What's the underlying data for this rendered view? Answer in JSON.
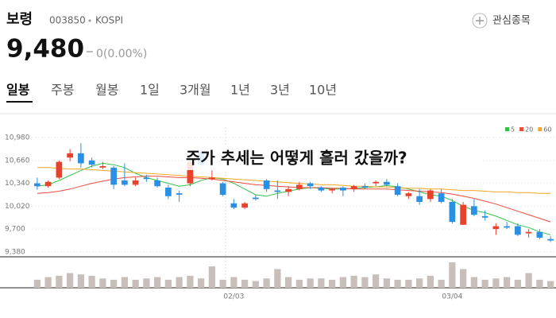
{
  "header": {
    "name": "보령",
    "code": "003850",
    "market": "KOSPI",
    "watch": "관심종목",
    "price": "9,480",
    "change": "0(0.00%)"
  },
  "tabs": [
    "일봉",
    "주봉",
    "월봉",
    "1일",
    "3개월",
    "1년",
    "3년",
    "10년"
  ],
  "chart_data": {
    "type": "candlestick",
    "title": "주가 추세는 어떻게 흘러 갔을까?",
    "categories": [
      null,
      null,
      null,
      null,
      null,
      null,
      null,
      null,
      null,
      null,
      null,
      null,
      null,
      null,
      null,
      null,
      null,
      null,
      "02/03",
      null,
      null,
      null,
      null,
      null,
      null,
      null,
      null,
      null,
      null,
      null,
      null,
      null,
      null,
      null,
      null,
      null,
      null,
      null,
      "03/04",
      null,
      null,
      null,
      null,
      null,
      null,
      null,
      null,
      null
    ],
    "open": [
      10340,
      10300,
      10420,
      10700,
      10760,
      10660,
      10560,
      10560,
      10380,
      10320,
      10420,
      10380,
      10280,
      10200,
      10340,
      10780,
      10400,
      10340,
      10060,
      10000,
      10140,
      10380,
      10240,
      10220,
      10260,
      10340,
      10280,
      10240,
      10280,
      10260,
      10300,
      10340,
      10360,
      10300,
      10160,
      10160,
      10120,
      10200,
      10080,
      9760,
      10020,
      9880,
      9700,
      9740,
      9740,
      9640,
      9660,
      9560
    ],
    "high": [
      10420,
      10380,
      10660,
      10820,
      10900,
      10700,
      10640,
      10580,
      10620,
      10420,
      10460,
      10420,
      10320,
      10240,
      10700,
      10820,
      10520,
      10360,
      10120,
      10080,
      10180,
      10400,
      10380,
      10300,
      10360,
      10360,
      10300,
      10280,
      10300,
      10320,
      10340,
      10380,
      10400,
      10340,
      10220,
      10260,
      10260,
      10260,
      10120,
      10080,
      10120,
      9960,
      9780,
      9800,
      9780,
      9700,
      9700,
      9600
    ],
    "low": [
      10250,
      10280,
      10400,
      10650,
      10560,
      10560,
      10540,
      10260,
      10300,
      10300,
      10360,
      10280,
      10120,
      10080,
      10300,
      10580,
      10380,
      10160,
      9980,
      9980,
      10100,
      10220,
      10120,
      10160,
      10240,
      10260,
      10220,
      10200,
      10160,
      10220,
      10260,
      10300,
      10300,
      10160,
      10120,
      10040,
      10080,
      10060,
      9780,
      9760,
      9880,
      9820,
      9620,
      9700,
      9600,
      9580,
      9560,
      9520
    ],
    "close": [
      10300,
      10360,
      10640,
      10760,
      10620,
      10600,
      10580,
      10320,
      10320,
      10380,
      10400,
      10300,
      10160,
      10180,
      10640,
      10600,
      10420,
      10180,
      10000,
      10060,
      10120,
      10260,
      10220,
      10260,
      10320,
      10300,
      10240,
      10260,
      10240,
      10300,
      10280,
      10360,
      10320,
      10180,
      10200,
      10080,
      10240,
      10080,
      9800,
      10040,
      9900,
      9860,
      9740,
      9720,
      9620,
      9660,
      9580,
      9540
    ],
    "volume": [
      30,
      40,
      45,
      55,
      50,
      45,
      35,
      30,
      40,
      30,
      35,
      40,
      30,
      40,
      45,
      35,
      80,
      30,
      40,
      30,
      25,
      35,
      70,
      40,
      30,
      35,
      35,
      30,
      40,
      45,
      40,
      50,
      35,
      30,
      30,
      35,
      45,
      30,
      95,
      70,
      40,
      30,
      35,
      40,
      30,
      55,
      30,
      25
    ],
    "up_color": "#e8412c",
    "down_color": "#2b8fe3",
    "volume_color": "#c8bfbb",
    "series": [
      {
        "name": "5",
        "color": "#35c24a",
        "values": [
          10300,
          10320,
          10380,
          10450,
          10520,
          10580,
          10620,
          10600,
          10560,
          10480,
          10420,
          10380,
          10340,
          10300,
          10320,
          10380,
          10420,
          10400,
          10340,
          10260,
          10180,
          10160,
          10200,
          10230,
          10260,
          10280,
          10270,
          10260,
          10260,
          10270,
          10280,
          10290,
          10310,
          10290,
          10260,
          10220,
          10180,
          10160,
          10100,
          10020,
          9960,
          9930,
          9880,
          9820,
          9760,
          9720,
          9660,
          9620
        ]
      },
      {
        "name": "20",
        "color": "#ef4a3c",
        "values": [
          10200,
          10210,
          10230,
          10260,
          10300,
          10340,
          10370,
          10400,
          10420,
          10430,
          10440,
          10440,
          10430,
          10420,
          10420,
          10410,
          10400,
          10380,
          10360,
          10340,
          10320,
          10310,
          10300,
          10290,
          10280,
          10280,
          10280,
          10270,
          10270,
          10260,
          10260,
          10260,
          10260,
          10250,
          10240,
          10230,
          10220,
          10210,
          10190,
          10160,
          10130,
          10090,
          10050,
          10000,
          9950,
          9900,
          9850,
          9800
        ]
      },
      {
        "name": "60",
        "color": "#f5a623",
        "values": [
          10560,
          10560,
          10550,
          10540,
          10540,
          10530,
          10520,
          10510,
          10500,
          10490,
          10480,
          10470,
          10460,
          10450,
          10440,
          10430,
          10420,
          10410,
          10400,
          10390,
          10380,
          10370,
          10360,
          10350,
          10340,
          10330,
          10320,
          10320,
          10310,
          10300,
          10300,
          10290,
          10290,
          10280,
          10270,
          10270,
          10260,
          10260,
          10250,
          10240,
          10240,
          10230,
          10220,
          10220,
          10210,
          10210,
          10200,
          10200
        ]
      }
    ],
    "ylim": [
      9290,
      11125
    ],
    "yticks": [
      {
        "value": 10980,
        "label": "10,980"
      },
      {
        "value": 10660,
        "label": "10,660"
      },
      {
        "value": 10340,
        "label": "10,340"
      },
      {
        "value": 10020,
        "label": "10,020"
      },
      {
        "value": 9700,
        "label": "9,700"
      },
      {
        "value": 9380,
        "label": "9,380"
      }
    ],
    "grid": true
  }
}
